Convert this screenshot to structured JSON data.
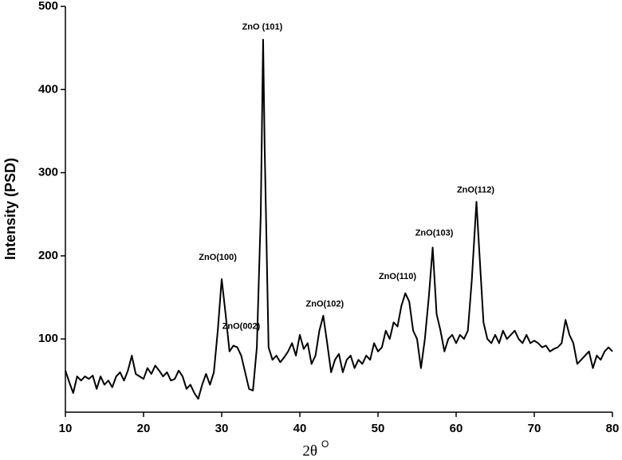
{
  "chart_data": {
    "type": "line",
    "x_label": "2θ",
    "x_label_sup": "O",
    "y_label": "Intensity (PSD)",
    "xlim": [
      10,
      80
    ],
    "xticks": [
      10,
      20,
      30,
      40,
      50,
      60,
      70,
      80
    ],
    "ylim": [
      12,
      500
    ],
    "yticks": [
      100,
      200,
      300,
      400,
      500
    ],
    "grid": false,
    "series": [
      {
        "color": "#000000",
        "x": [
          10,
          10.5,
          11,
          11.5,
          12,
          12.5,
          13,
          13.5,
          14,
          14.5,
          15,
          15.5,
          16,
          16.5,
          17,
          17.5,
          18,
          18.5,
          19,
          19.5,
          20,
          20.5,
          21,
          21.5,
          22,
          22.5,
          23,
          23.5,
          24,
          24.5,
          25,
          25.5,
          26,
          26.5,
          27,
          27.5,
          28,
          28.5,
          29,
          29.5,
          30,
          30.5,
          31,
          31.5,
          32,
          32.5,
          33,
          33.5,
          34,
          34.5,
          35,
          35.3,
          35.5,
          36,
          36.5,
          37,
          37.5,
          38,
          38.5,
          39,
          39.5,
          40,
          40.5,
          41,
          41.5,
          42,
          42.5,
          43,
          43.5,
          44,
          44.5,
          45,
          45.5,
          46,
          46.5,
          47,
          47.5,
          48,
          48.5,
          49,
          49.5,
          50,
          50.5,
          51,
          51.5,
          52,
          52.5,
          53,
          53.5,
          54,
          54.5,
          55,
          55.5,
          56,
          56.5,
          57,
          57.5,
          58,
          58.5,
          59,
          59.5,
          60,
          60.5,
          61,
          61.5,
          62,
          62.6,
          63,
          63.5,
          64,
          64.5,
          65,
          65.5,
          66,
          66.5,
          67,
          67.5,
          68,
          68.5,
          69,
          69.5,
          70,
          70.5,
          71,
          71.5,
          72,
          72.5,
          73,
          73.5,
          74,
          74.5,
          75,
          75.5,
          76,
          76.5,
          77,
          77.5,
          78,
          78.5,
          79,
          79.5,
          80
        ],
        "values": [
          62,
          48,
          35,
          55,
          50,
          55,
          52,
          56,
          40,
          55,
          45,
          50,
          42,
          55,
          60,
          50,
          62,
          80,
          58,
          55,
          52,
          65,
          58,
          68,
          62,
          55,
          60,
          50,
          52,
          62,
          55,
          40,
          45,
          35,
          28,
          45,
          58,
          45,
          60,
          110,
          172,
          130,
          85,
          92,
          90,
          80,
          60,
          40,
          38,
          90,
          250,
          460,
          330,
          90,
          75,
          80,
          72,
          78,
          85,
          95,
          80,
          105,
          88,
          95,
          70,
          80,
          110,
          128,
          95,
          60,
          75,
          82,
          60,
          75,
          80,
          65,
          75,
          70,
          80,
          75,
          95,
          85,
          90,
          110,
          100,
          120,
          115,
          140,
          155,
          145,
          110,
          100,
          65,
          100,
          150,
          210,
          130,
          110,
          85,
          100,
          105,
          95,
          105,
          100,
          110,
          170,
          265,
          200,
          120,
          100,
          95,
          105,
          95,
          110,
          100,
          105,
          110,
          100,
          95,
          105,
          95,
          98,
          95,
          90,
          92,
          85,
          88,
          90,
          95,
          123,
          105,
          95,
          70,
          75,
          80,
          85,
          65,
          80,
          75,
          85,
          90,
          85
        ]
      }
    ],
    "annotations": [
      {
        "text": "ZnO (101)",
        "x": 35.2,
        "y": 475
      },
      {
        "text": "ZnO(100)",
        "x": 29.5,
        "y": 198
      },
      {
        "text": "ZnO(002)",
        "x": 32.5,
        "y": 115
      },
      {
        "text": "ZnO(102)",
        "x": 43.2,
        "y": 142
      },
      {
        "text": "ZnO(110)",
        "x": 52.5,
        "y": 175
      },
      {
        "text": "ZnO(103)",
        "x": 57.2,
        "y": 227
      },
      {
        "text": "ZnO(112)",
        "x": 62.5,
        "y": 279
      }
    ]
  }
}
